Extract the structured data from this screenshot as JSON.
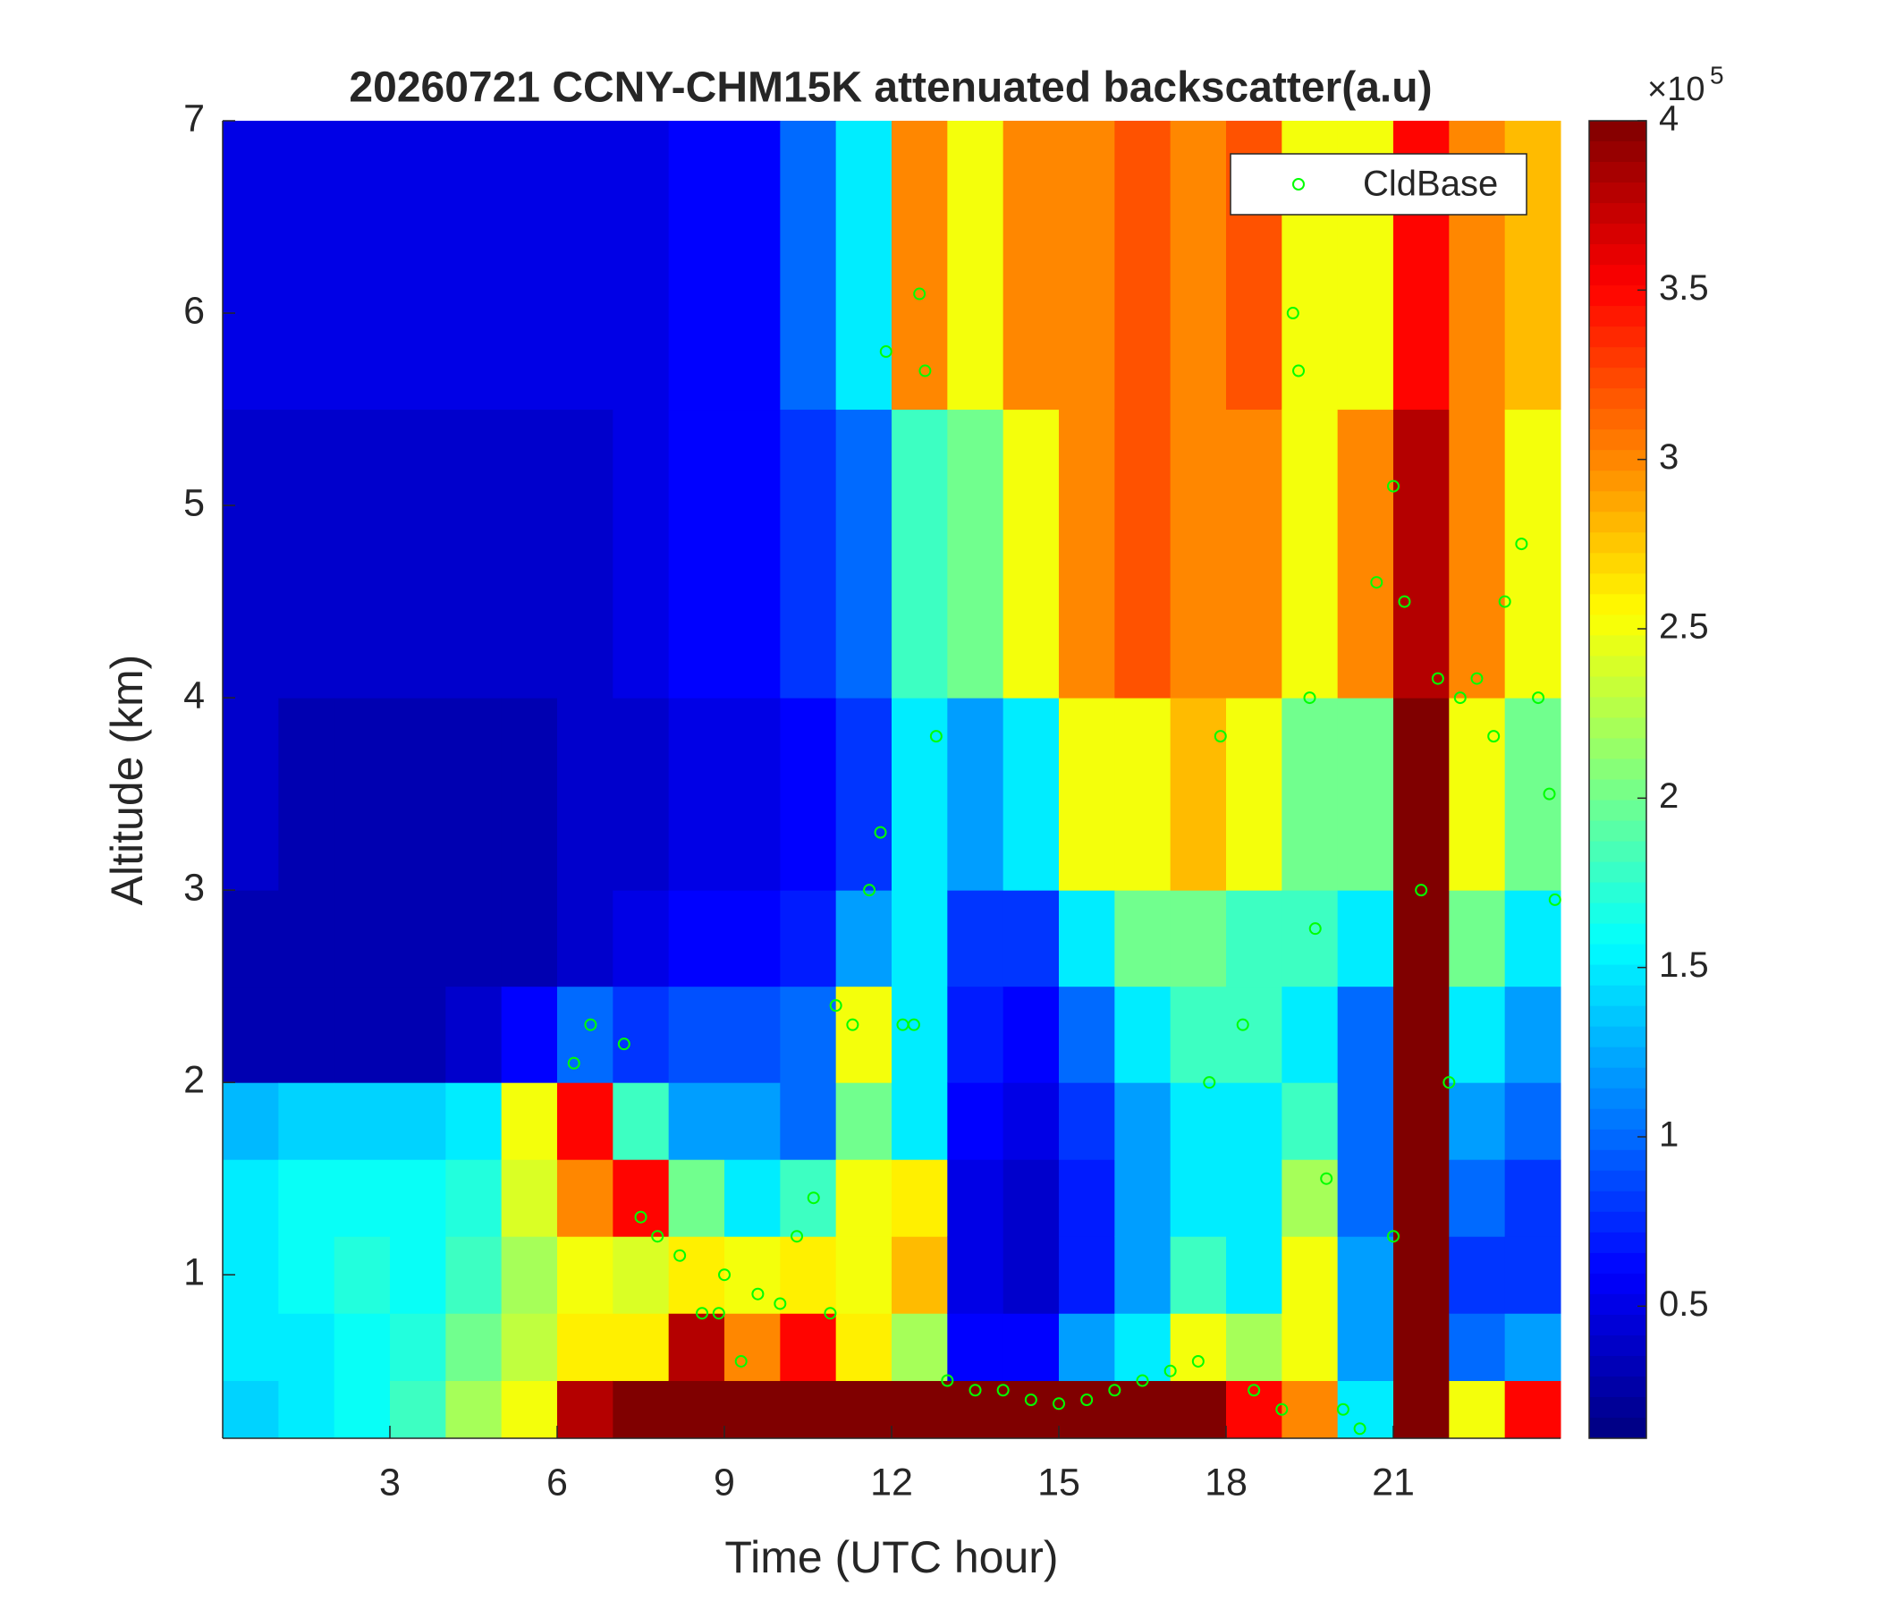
{
  "chart_data": {
    "type": "heatmap",
    "title": "20260721 CCNY-CHM15K attenuated backscatter(a.u)",
    "x_label": "Time (UTC hour)",
    "y_label": "Altitude (km)",
    "xlim": [
      0,
      24
    ],
    "xticks": [
      3,
      6,
      9,
      12,
      15,
      18,
      21
    ],
    "ylim": [
      0.15,
      7
    ],
    "yticks": [
      1,
      2,
      3,
      4,
      5,
      6,
      7
    ],
    "x_edges": [
      0,
      1,
      2,
      3,
      4,
      5,
      6,
      7,
      8,
      9,
      10,
      11,
      12,
      13,
      14,
      15,
      16,
      17,
      18,
      19,
      20,
      21,
      22,
      23,
      24
    ],
    "y_edges": [
      0.15,
      0.45,
      0.8,
      1.2,
      1.6,
      2,
      2.5,
      3,
      4,
      5.5,
      7
    ],
    "colormap": "jet",
    "clim": [
      0.11,
      4
    ],
    "cticks": [
      0.5,
      1,
      1.5,
      2,
      2.5,
      3,
      3.5,
      4
    ],
    "colorbar_multiplier": "×10",
    "colorbar_exponent": "5",
    "z": [
      [
        1.4,
        1.5,
        1.5,
        1.5,
        1.3,
        0.3,
        0.3,
        0.4,
        0.4,
        0.5
      ],
      [
        1.5,
        1.5,
        1.6,
        1.6,
        1.4,
        0.3,
        0.3,
        0.3,
        0.4,
        0.5
      ],
      [
        1.6,
        1.6,
        1.7,
        1.6,
        1.4,
        0.3,
        0.3,
        0.3,
        0.4,
        0.5
      ],
      [
        1.8,
        1.7,
        1.6,
        1.6,
        1.4,
        0.3,
        0.3,
        0.3,
        0.4,
        0.5
      ],
      [
        2.2,
        2.0,
        1.8,
        1.7,
        1.5,
        0.4,
        0.3,
        0.3,
        0.4,
        0.5
      ],
      [
        2.5,
        2.3,
        2.2,
        2.4,
        2.5,
        0.6,
        0.3,
        0.3,
        0.4,
        0.5
      ],
      [
        3.8,
        2.6,
        2.5,
        3.0,
        3.5,
        1.0,
        0.4,
        0.4,
        0.4,
        0.5
      ],
      [
        4,
        2.6,
        2.4,
        3.5,
        1.8,
        0.8,
        0.5,
        0.4,
        0.5,
        0.5
      ],
      [
        4,
        3.8,
        2.6,
        2.0,
        1.2,
        0.9,
        0.6,
        0.5,
        0.6,
        0.6
      ],
      [
        4,
        3.0,
        2.5,
        1.5,
        1.2,
        0.9,
        0.6,
        0.5,
        0.6,
        0.6
      ],
      [
        4,
        3.5,
        2.6,
        1.8,
        1.0,
        1.0,
        0.7,
        0.6,
        0.8,
        1.0
      ],
      [
        4,
        2.6,
        2.5,
        2.5,
        2.0,
        2.5,
        1.2,
        0.8,
        1.0,
        1.5
      ],
      [
        4,
        2.2,
        2.8,
        2.6,
        1.5,
        1.5,
        1.5,
        1.5,
        1.8,
        3.0
      ],
      [
        4,
        0.6,
        0.5,
        0.5,
        0.6,
        0.7,
        0.8,
        1.2,
        2.0,
        2.5
      ],
      [
        4,
        0.6,
        0.4,
        0.4,
        0.5,
        0.6,
        0.8,
        1.5,
        2.5,
        3.0
      ],
      [
        4,
        1.2,
        0.7,
        0.7,
        0.8,
        1.0,
        1.5,
        2.5,
        3.0,
        3.0
      ],
      [
        4,
        1.5,
        1.2,
        1.2,
        1.2,
        1.5,
        2.0,
        2.5,
        3.2,
        3.2
      ],
      [
        4,
        2.5,
        1.8,
        1.5,
        1.5,
        1.8,
        2.0,
        2.8,
        3.0,
        3.0
      ],
      [
        3.5,
        2.2,
        1.5,
        1.5,
        1.5,
        1.8,
        1.8,
        2.5,
        3.0,
        3.2
      ],
      [
        3,
        2.5,
        2.5,
        2.2,
        1.8,
        1.5,
        1.8,
        2.0,
        2.5,
        2.5
      ],
      [
        1.5,
        1.2,
        1.2,
        1.0,
        1.0,
        1.0,
        1.5,
        2.0,
        3.0,
        2.5
      ],
      [
        4,
        4,
        4,
        4,
        4,
        4,
        4,
        4,
        3.8,
        3.5
      ],
      [
        2.5,
        1.0,
        0.8,
        1.0,
        1.2,
        1.5,
        2.0,
        2.5,
        3.0,
        3.0
      ],
      [
        3.5,
        1.2,
        0.8,
        0.8,
        1.0,
        1.2,
        1.5,
        2.0,
        2.5,
        2.8
      ]
    ],
    "legend": "upper right",
    "series": [
      {
        "name": "CldBase",
        "color": "#00ff00",
        "x": [
          6.3,
          6.6,
          7.2,
          7.5,
          7.8,
          8.2,
          8.6,
          8.9,
          9.0,
          9.3,
          9.6,
          10,
          10.3,
          10.6,
          10.9,
          11.0,
          11.3,
          11.6,
          11.8,
          12.2,
          12.4,
          12.5,
          12.6,
          11.9,
          12.8,
          13,
          13.5,
          14,
          14.5,
          15,
          15.5,
          16,
          16.5,
          17,
          17.5,
          17.7,
          17.9,
          18.3,
          18.5,
          19,
          19.2,
          19.3,
          19.5,
          19.6,
          19.8,
          20.1,
          20.4,
          20.7,
          21,
          21.2,
          21,
          21.5,
          21.8,
          22,
          22.2,
          22.5,
          22.8,
          23,
          23.3,
          23.6,
          23.8,
          23.9
        ],
        "y": [
          2.1,
          2.3,
          2.2,
          1.3,
          1.2,
          1.1,
          0.8,
          0.8,
          1.0,
          0.55,
          0.9,
          0.85,
          1.2,
          1.4,
          0.8,
          2.4,
          2.3,
          3.0,
          3.3,
          2.3,
          2.3,
          6.1,
          5.7,
          5.8,
          3.8,
          0.45,
          0.4,
          0.4,
          0.35,
          0.33,
          0.35,
          0.4,
          0.45,
          0.5,
          0.55,
          2.0,
          3.8,
          2.3,
          0.4,
          0.3,
          6.0,
          5.7,
          4.0,
          2.8,
          1.5,
          0.3,
          0.2,
          4.6,
          5.1,
          4.5,
          1.2,
          3.0,
          4.1,
          2.0,
          4.0,
          4.1,
          3.8,
          4.5,
          4.8,
          4.0,
          3.5,
          2.95
        ]
      }
    ]
  }
}
